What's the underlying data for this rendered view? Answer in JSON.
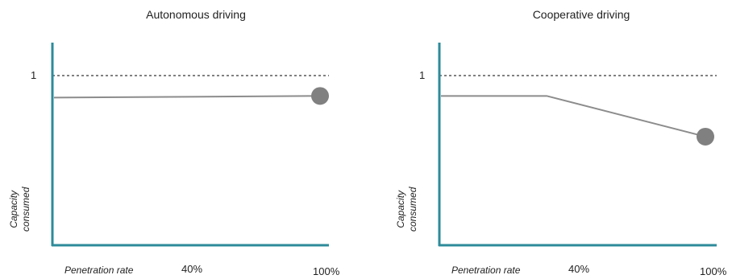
{
  "chart_data": [
    {
      "type": "line",
      "title": "Autonomous driving",
      "ylabel_line1": "Capacity",
      "ylabel_line2": "consumed",
      "xlabel": "Penetration rate",
      "x_tick_labels": [
        "40%",
        "100%"
      ],
      "y_reference": {
        "value": 1,
        "label": "1",
        "style": "dashed"
      },
      "x": [
        0,
        100
      ],
      "y": [
        0.87,
        0.88
      ],
      "xlim": [
        0,
        105
      ],
      "ylim": [
        0,
        1.2
      ],
      "end_marker": "circle",
      "colors": {
        "axis": "#2e8b9a",
        "line": "#8c8c8c",
        "marker": "#808080",
        "reference": "#000000"
      }
    },
    {
      "type": "line",
      "title": "Cooperative driving",
      "ylabel_line1": "Capacity",
      "ylabel_line2": "consumed",
      "xlabel": "Penetration rate",
      "x_tick_labels": [
        "40%",
        "100%"
      ],
      "y_reference": {
        "value": 1,
        "label": "1",
        "style": "dashed"
      },
      "x": [
        0,
        40,
        100
      ],
      "y": [
        0.88,
        0.88,
        0.64
      ],
      "xlim": [
        0,
        105
      ],
      "ylim": [
        0,
        1.2
      ],
      "end_marker": "circle",
      "colors": {
        "axis": "#2e8b9a",
        "line": "#8c8c8c",
        "marker": "#808080",
        "reference": "#000000"
      }
    }
  ]
}
